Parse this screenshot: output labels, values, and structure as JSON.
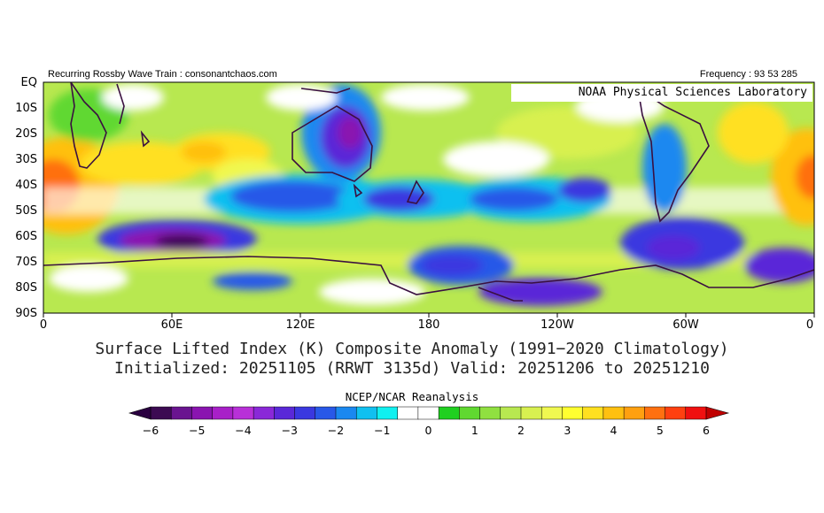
{
  "header": {
    "left": "Recurring Rossby Wave Train : consonantchaos.com",
    "right": "Frequency : 93 53 285"
  },
  "map": {
    "watermark": "NOAA Physical Sciences Laboratory",
    "lat_labels": [
      "EQ",
      "10S",
      "20S",
      "30S",
      "40S",
      "50S",
      "60S",
      "70S",
      "80S",
      "90S"
    ],
    "lon_labels": [
      "0",
      "60E",
      "120E",
      "180",
      "120W",
      "60W",
      "0"
    ],
    "coastline_color": "#3a1040"
  },
  "title": {
    "line1": "Surface Lifted Index (K) Composite Anomaly (1991−2020 Climatology)",
    "line2": "Initialized: 20251105 (RRWT 3135d) Valid: 20251206 to 20251210"
  },
  "source": "NCEP/NCAR Reanalysis",
  "colorbar": {
    "colors": [
      "#3c0a52",
      "#6a1490",
      "#8a14b0",
      "#a820c8",
      "#b830d8",
      "#8a28d8",
      "#5a28d8",
      "#3a38e0",
      "#2858e8",
      "#1a88f0",
      "#10c0f0",
      "#10f0f0",
      "#ffffff",
      "#ffffff",
      "#20d020",
      "#60d830",
      "#90e040",
      "#b8e850",
      "#d8f050",
      "#f0f850",
      "#ffff30",
      "#ffe020",
      "#ffc010",
      "#ffa010",
      "#ff7010",
      "#ff4010",
      "#f01010"
    ],
    "under_color": "#2a0040",
    "over_color": "#c00000",
    "tick_labels": [
      "−6",
      "−5",
      "−4",
      "−3",
      "−2",
      "−1",
      "0",
      "1",
      "2",
      "3",
      "4",
      "5",
      "6"
    ]
  }
}
